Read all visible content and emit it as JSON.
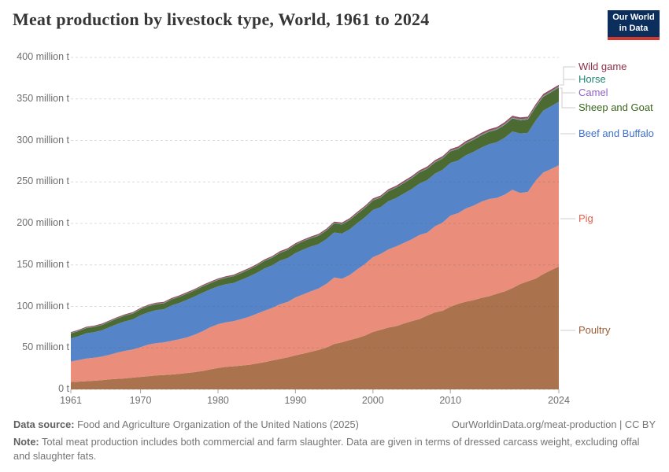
{
  "header": {
    "title": "Meat production by livestock type, World, 1961 to 2024",
    "logo_line1": "Our World",
    "logo_line2": "in Data"
  },
  "footer": {
    "source_label": "Data source:",
    "source_text": " Food and Agriculture Organization of the United Nations (2025)",
    "link_text": "OurWorldinData.org/meat-production | CC BY",
    "note_label": "Note:",
    "note_text": " Total meat production includes both commercial and farm slaughter. Data are given in terms of dressed carcass weight, excluding offal and slaughter fats."
  },
  "chart_data": {
    "type": "area",
    "stacked": true,
    "title": "Meat production by livestock type, World, 1961 to 2024",
    "unit": "million t",
    "zero_label": "0 t",
    "ylim": [
      0,
      400
    ],
    "yticks": [
      0,
      50,
      100,
      150,
      200,
      250,
      300,
      350,
      400
    ],
    "xticks": [
      1961,
      1970,
      1980,
      1990,
      2000,
      2010,
      2024
    ],
    "grid": "dashed-horizontal",
    "legend_position": "right",
    "x": [
      1961,
      1962,
      1963,
      1964,
      1965,
      1966,
      1967,
      1968,
      1969,
      1970,
      1971,
      1972,
      1973,
      1974,
      1975,
      1976,
      1977,
      1978,
      1979,
      1980,
      1981,
      1982,
      1983,
      1984,
      1985,
      1986,
      1987,
      1988,
      1989,
      1990,
      1991,
      1992,
      1993,
      1994,
      1995,
      1996,
      1997,
      1998,
      1999,
      2000,
      2001,
      2002,
      2003,
      2004,
      2005,
      2006,
      2007,
      2008,
      2009,
      2010,
      2011,
      2012,
      2013,
      2014,
      2015,
      2016,
      2017,
      2018,
      2019,
      2020,
      2021,
      2022,
      2023,
      2024
    ],
    "series": [
      {
        "name": "Poultry",
        "color": "#9B5B35",
        "fill": "#AB724E",
        "values": [
          8.9,
          9.4,
          9.9,
          10.4,
          11.1,
          12.0,
          12.7,
          13.3,
          14.2,
          15.1,
          15.8,
          16.8,
          17.3,
          17.9,
          18.7,
          19.8,
          20.9,
          22.2,
          24.1,
          25.9,
          27.1,
          27.9,
          28.7,
          29.6,
          31.2,
          32.8,
          34.8,
          36.8,
          38.6,
          41.0,
          43.0,
          45.4,
          47.7,
          50.3,
          54.8,
          56.8,
          59.4,
          61.8,
          65.0,
          69.2,
          71.8,
          74.5,
          76.2,
          79.3,
          82.3,
          84.7,
          89.0,
          92.8,
          94.8,
          99.5,
          103.1,
          105.7,
          107.6,
          110.2,
          112.2,
          115.3,
          118.0,
          122.0,
          126.9,
          130.2,
          133.5,
          139.0,
          143.7,
          148.0
        ]
      },
      {
        "name": "Pig",
        "color": "#E2604B",
        "fill": "#EA8D7B",
        "values": [
          24.7,
          25.9,
          27.3,
          27.8,
          28.4,
          29.7,
          31.7,
          33.1,
          33.9,
          35.8,
          38.2,
          38.9,
          39.3,
          40.7,
          41.8,
          42.9,
          45.1,
          47.8,
          50.8,
          52.7,
          53.7,
          54.4,
          56.0,
          57.9,
          59.9,
          62.0,
          63.4,
          65.8,
          66.9,
          69.8,
          71.4,
          72.9,
          74.0,
          76.9,
          80.1,
          76.5,
          78.4,
          82.9,
          86.3,
          90.1,
          91.5,
          94.2,
          96.0,
          97.3,
          98.6,
          101.3,
          99.9,
          103.7,
          106.2,
          109.9,
          109.3,
          112.3,
          113.8,
          116.0,
          117.2,
          115.5,
          116.6,
          118.6,
          109.8,
          107.7,
          118.0,
          122.3,
          121.8,
          122.0
        ]
      },
      {
        "name": "Beef and Buffalo",
        "color": "#3D6FCC",
        "fill": "#5585C8",
        "values": [
          27.7,
          28.8,
          30.5,
          30.8,
          31.7,
          33.3,
          34.4,
          35.6,
          36.3,
          38.4,
          38.9,
          39.8,
          40.0,
          42.4,
          43.7,
          45.3,
          45.9,
          46.5,
          45.6,
          45.6,
          45.8,
          45.9,
          47.3,
          48.4,
          49.3,
          51.0,
          51.4,
          52.5,
          52.8,
          53.4,
          54.0,
          53.8,
          53.4,
          53.9,
          54.2,
          54.4,
          55.1,
          55.8,
          56.4,
          56.9,
          56.3,
          58.0,
          58.4,
          59.4,
          60.4,
          62.0,
          63.2,
          63.4,
          63.6,
          63.5,
          63.4,
          64.1,
          64.9,
          65.2,
          66.1,
          67.1,
          68.6,
          70.2,
          71.7,
          71.2,
          72.2,
          74.7,
          75.7,
          76.5
        ]
      },
      {
        "name": "Sheep and Goat",
        "color": "#3A661C",
        "fill": "#4C6B33",
        "values": [
          6.0,
          6.1,
          6.1,
          6.1,
          6.3,
          6.4,
          6.6,
          6.8,
          7.0,
          7.2,
          7.3,
          7.2,
          7.1,
          7.2,
          7.3,
          7.3,
          7.4,
          7.5,
          7.5,
          7.6,
          7.8,
          8.0,
          8.2,
          8.4,
          8.6,
          8.9,
          9.1,
          9.4,
          9.7,
          9.9,
          10.0,
          10.0,
          10.1,
          10.4,
          10.8,
          11.0,
          11.0,
          11.2,
          11.3,
          11.4,
          11.6,
          11.9,
          12.2,
          12.6,
          13.0,
          13.3,
          13.5,
          13.5,
          13.6,
          13.8,
          13.9,
          14.1,
          14.4,
          14.7,
          14.9,
          15.1,
          15.4,
          15.7,
          15.9,
          16.1,
          16.4,
          16.6,
          16.9,
          17.2
        ]
      },
      {
        "name": "Camel",
        "color": "#8F62C6",
        "fill": "#A783C6",
        "values": [
          0.12,
          0.12,
          0.13,
          0.13,
          0.13,
          0.13,
          0.13,
          0.13,
          0.13,
          0.13,
          0.14,
          0.14,
          0.14,
          0.14,
          0.13,
          0.14,
          0.14,
          0.14,
          0.14,
          0.13,
          0.14,
          0.15,
          0.15,
          0.15,
          0.15,
          0.16,
          0.16,
          0.17,
          0.17,
          0.16,
          0.17,
          0.17,
          0.18,
          0.18,
          0.18,
          0.19,
          0.2,
          0.21,
          0.21,
          0.22,
          0.23,
          0.24,
          0.25,
          0.25,
          0.25,
          0.26,
          0.27,
          0.28,
          0.3,
          0.33,
          0.35,
          0.38,
          0.4,
          0.43,
          0.45,
          0.47,
          0.5,
          0.52,
          0.55,
          0.57,
          0.58,
          0.6,
          0.62,
          0.65
        ]
      },
      {
        "name": "Horse",
        "color": "#1F8572",
        "fill": "#4D9181",
        "values": [
          0.56,
          0.55,
          0.56,
          0.54,
          0.53,
          0.52,
          0.52,
          0.51,
          0.5,
          0.5,
          0.51,
          0.5,
          0.49,
          0.48,
          0.48,
          0.47,
          0.47,
          0.48,
          0.48,
          0.48,
          0.49,
          0.49,
          0.5,
          0.51,
          0.51,
          0.52,
          0.53,
          0.53,
          0.54,
          0.54,
          0.55,
          0.57,
          0.58,
          0.59,
          0.6,
          0.62,
          0.63,
          0.64,
          0.65,
          0.65,
          0.66,
          0.67,
          0.68,
          0.69,
          0.7,
          0.71,
          0.72,
          0.73,
          0.74,
          0.75,
          0.76,
          0.76,
          0.77,
          0.77,
          0.78,
          0.78,
          0.78,
          0.78,
          0.79,
          0.79,
          0.78,
          0.78,
          0.78,
          0.77
        ]
      },
      {
        "name": "Wild game",
        "color": "#8C3047",
        "fill": "#964A5B",
        "values": [
          1.0,
          1.0,
          1.0,
          1.0,
          1.1,
          1.1,
          1.1,
          1.1,
          1.1,
          1.1,
          1.1,
          1.1,
          1.2,
          1.2,
          1.2,
          1.2,
          1.2,
          1.2,
          1.2,
          1.2,
          1.2,
          1.3,
          1.3,
          1.3,
          1.3,
          1.3,
          1.3,
          1.4,
          1.4,
          1.4,
          1.4,
          1.4,
          1.5,
          1.5,
          1.5,
          1.5,
          1.5,
          1.6,
          1.6,
          1.6,
          1.6,
          1.7,
          1.7,
          1.7,
          1.7,
          1.7,
          1.8,
          1.8,
          1.8,
          1.8,
          1.8,
          1.9,
          1.9,
          1.9,
          1.9,
          1.9,
          2.0,
          2.0,
          2.0,
          2.0,
          2.0,
          2.0,
          2.0,
          2.0
        ]
      }
    ]
  }
}
